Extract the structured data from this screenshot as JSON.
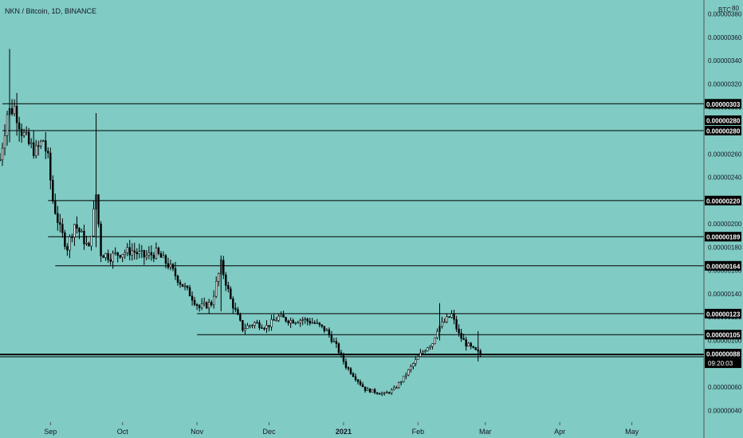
{
  "header": {
    "title": "NKN / Bitcoin, 1D, BINANCE"
  },
  "colors": {
    "background": "#80cbc4",
    "text": "#131722",
    "line": "#000000",
    "badge_bg": "#000000",
    "badge_text": "#ffffff"
  },
  "chart_data": {
    "type": "candlestick",
    "symbol": "NKN / Bitcoin",
    "interval": "1D",
    "exchange": "BINANCE",
    "price_unit": "BTC",
    "scale_hint": "80",
    "ylim": [
      3e-07,
      3.92e-06
    ],
    "y_ticks": [
      "0.00000040",
      "0.00000060",
      "0.00000080",
      "0.00000100",
      "0.00000120",
      "0.00000140",
      "0.00000160",
      "0.00000180",
      "0.00000200",
      "0.00000220",
      "0.00000240",
      "0.00000260",
      "0.00000280",
      "0.00000300",
      "0.00000320",
      "0.00000340",
      "0.00000360",
      "0.00000380"
    ],
    "x_ticks": [
      "Sep",
      "Oct",
      "Nov",
      "Dec",
      "2021",
      "Feb",
      "Mar",
      "Apr",
      "May"
    ],
    "x_tick_dates": [
      "2020-09-01",
      "2020-10-01",
      "2020-11-01",
      "2020-12-01",
      "2021-01-01",
      "2021-02-01",
      "2021-03-01",
      "2021-04-01",
      "2021-05-01"
    ],
    "x_range_dates": [
      "2020-08-11",
      "2021-05-31"
    ],
    "current_price": "0.00000088",
    "countdown": "09:20:03",
    "horizontal_levels": [
      {
        "price": "0.00000303",
        "start_date": "2020-08-12"
      },
      {
        "price": "0.00000280",
        "start_date": "2020-08-12",
        "label_only": true
      },
      {
        "price": "0.00000280",
        "start_date": "2020-08-12"
      },
      {
        "price": "0.00000220",
        "start_date": "2020-08-31"
      },
      {
        "price": "0.00000189",
        "start_date": "2020-08-31"
      },
      {
        "price": "0.00000164",
        "start_date": "2020-09-03"
      },
      {
        "price": "0.00000123",
        "start_date": "2020-11-01"
      },
      {
        "price": "0.00000105",
        "start_date": "2020-11-01"
      },
      {
        "price": "0.00000086",
        "start_date": "2020-08-11"
      }
    ],
    "price_path": [
      [
        "2020-08-11",
        2.55e-06
      ],
      [
        "2020-08-14",
        2.95e-06
      ],
      [
        "2020-08-17",
        3e-06
      ],
      [
        "2020-08-20",
        2.8e-06
      ],
      [
        "2020-08-23",
        2.68e-06
      ],
      [
        "2020-08-26",
        2.62e-06
      ],
      [
        "2020-08-29",
        2.72e-06
      ],
      [
        "2020-08-31",
        2.55e-06
      ],
      [
        "2020-09-02",
        2.2e-06
      ],
      [
        "2020-09-05",
        1.95e-06
      ],
      [
        "2020-09-08",
        1.8e-06
      ],
      [
        "2020-09-11",
        2e-06
      ],
      [
        "2020-09-14",
        1.9e-06
      ],
      [
        "2020-09-17",
        1.78e-06
      ],
      [
        "2020-09-20",
        2.25e-06
      ],
      [
        "2020-09-22",
        1.75e-06
      ],
      [
        "2020-09-26",
        1.72e-06
      ],
      [
        "2020-09-30",
        1.75e-06
      ],
      [
        "2020-10-05",
        1.77e-06
      ],
      [
        "2020-10-10",
        1.72e-06
      ],
      [
        "2020-10-15",
        1.75e-06
      ],
      [
        "2020-10-20",
        1.65e-06
      ],
      [
        "2020-10-25",
        1.5e-06
      ],
      [
        "2020-10-29",
        1.4e-06
      ],
      [
        "2020-11-02",
        1.28e-06
      ],
      [
        "2020-11-07",
        1.32e-06
      ],
      [
        "2020-11-11",
        1.65e-06
      ],
      [
        "2020-11-15",
        1.35e-06
      ],
      [
        "2020-11-20",
        1.1e-06
      ],
      [
        "2020-11-25",
        1.15e-06
      ],
      [
        "2020-11-30",
        1.12e-06
      ],
      [
        "2020-12-05",
        1.2e-06
      ],
      [
        "2020-12-10",
        1.17e-06
      ],
      [
        "2020-12-15",
        1.18e-06
      ],
      [
        "2020-12-20",
        1.15e-06
      ],
      [
        "2020-12-25",
        1.08e-06
      ],
      [
        "2020-12-29",
        9.5e-07
      ],
      [
        "2021-01-02",
        7.8e-07
      ],
      [
        "2021-01-06",
        6.8e-07
      ],
      [
        "2021-01-10",
        5.8e-07
      ],
      [
        "2021-01-14",
        5.6e-07
      ],
      [
        "2021-01-18",
        5.4e-07
      ],
      [
        "2021-01-22",
        5.8e-07
      ],
      [
        "2021-01-26",
        6.8e-07
      ],
      [
        "2021-01-30",
        8e-07
      ],
      [
        "2021-02-02",
        8.8e-07
      ],
      [
        "2021-02-05",
        9.5e-07
      ],
      [
        "2021-02-07",
        9.8e-07
      ],
      [
        "2021-02-09",
        1.1e-06
      ],
      [
        "2021-02-12",
        1.16e-06
      ],
      [
        "2021-02-15",
        1.22e-06
      ],
      [
        "2021-02-18",
        1.05e-06
      ],
      [
        "2021-02-21",
        9.7e-07
      ],
      [
        "2021-02-24",
        9.2e-07
      ],
      [
        "2021-02-27",
        8.8e-07
      ]
    ]
  }
}
